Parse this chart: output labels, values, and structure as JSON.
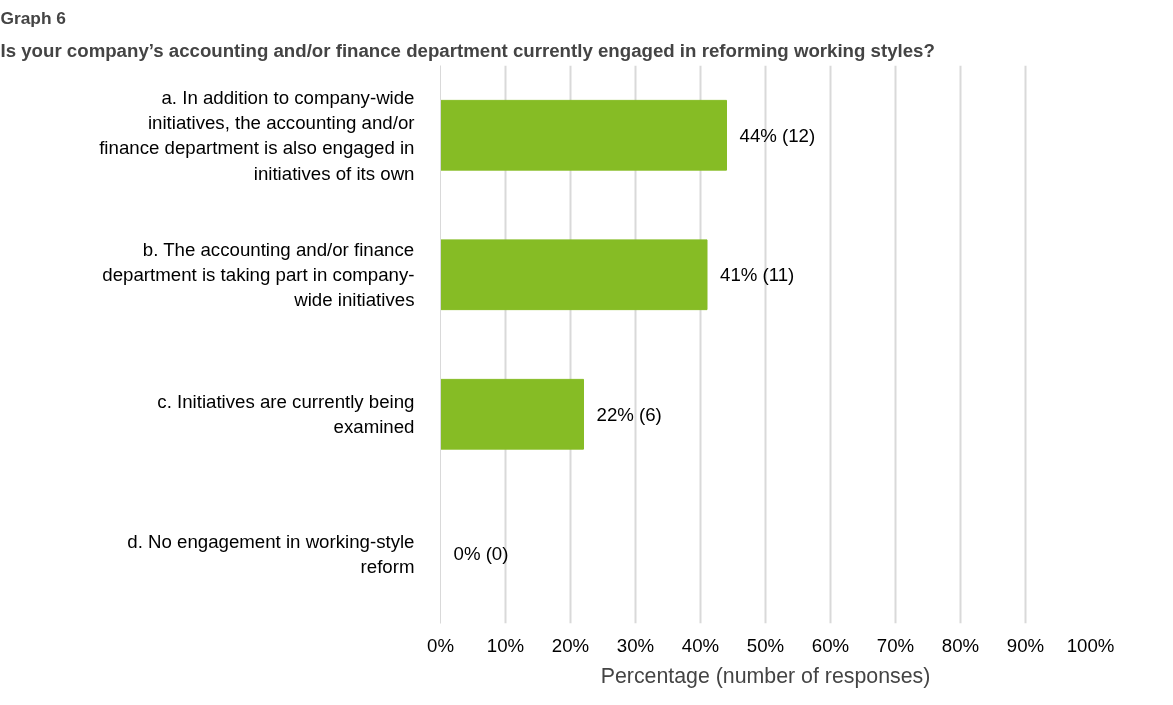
{
  "chart_data": {
    "type": "bar",
    "orientation": "horizontal",
    "title": "Graph 6",
    "subtitle": "Is your company’s accounting and/or finance department currently engaged in reforming working styles?",
    "categories": [
      "a. In addition to company-wide initiatives, the accounting and/or finance department is also engaged in initiatives of its own",
      "b. The accounting and/or finance department is taking part in company-wide initiatives",
      "c. Initiatives are currently being examined",
      "d. No engagement in working-style reform"
    ],
    "values": [
      44,
      41,
      22,
      0
    ],
    "value_labels": [
      "44% (12)",
      "41% (11)",
      "22% (6)",
      "0% (0)"
    ],
    "color": "#86bc25",
    "xlim": [
      0,
      100
    ],
    "xticks": [
      {
        "value": 0,
        "label": "0%"
      },
      {
        "value": 10,
        "label": "10%"
      },
      {
        "value": 20,
        "label": "20%"
      },
      {
        "value": 30,
        "label": "30%"
      },
      {
        "value": 40,
        "label": "40%"
      },
      {
        "value": 50,
        "label": "50%"
      },
      {
        "value": 60,
        "label": "60%"
      },
      {
        "value": 70,
        "label": "70%"
      },
      {
        "value": 80,
        "label": "80%"
      },
      {
        "value": 90,
        "label": "90%"
      },
      {
        "value": 100,
        "label": "100%"
      }
    ],
    "xlabel": "Percentage (number of responses)",
    "grid": "x"
  }
}
